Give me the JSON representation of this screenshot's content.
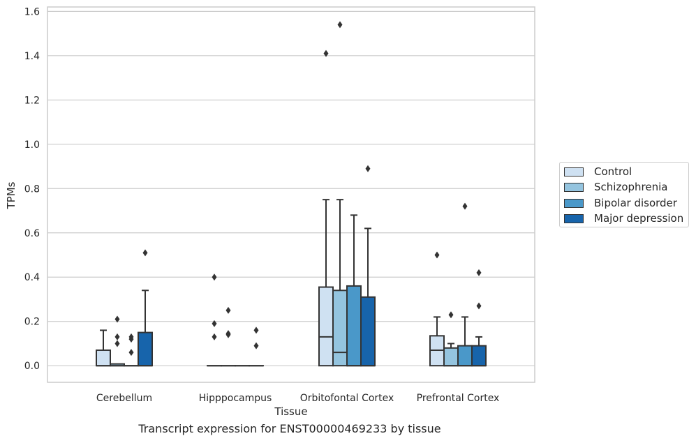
{
  "caption": "Transcript expression for ENST00000469233 by tissue",
  "chart_data": {
    "type": "box",
    "xlabel": "Tissue",
    "ylabel": "TPMs",
    "ylim": [
      -0.075,
      1.62
    ],
    "yticks": [
      "0.0",
      "0.2",
      "0.4",
      "0.6",
      "0.8",
      "1.0",
      "1.2",
      "1.4",
      "1.6"
    ],
    "categories": [
      "Cerebellum",
      "Hipppocampus",
      "Orbitofontal Cortex",
      "Prefrontal Cortex"
    ],
    "grid": "horizontal",
    "legend_placement": "right",
    "series": [
      {
        "name": "Control",
        "color": "#cfe1f2",
        "boxes": [
          {
            "q1": 0.0,
            "median": 0.0,
            "q3": 0.07,
            "whisker_low": 0.0,
            "whisker_high": 0.16,
            "outliers": []
          },
          {
            "q1": 0.0,
            "median": 0.0,
            "q3": 0.0,
            "whisker_low": 0.0,
            "whisker_high": 0.0,
            "outliers": [
              0.4,
              0.19,
              0.13
            ]
          },
          {
            "q1": 0.0,
            "median": 0.13,
            "q3": 0.355,
            "whisker_low": 0.0,
            "whisker_high": 0.75,
            "outliers": [
              1.41
            ]
          },
          {
            "q1": 0.0,
            "median": 0.07,
            "q3": 0.135,
            "whisker_low": 0.0,
            "whisker_high": 0.22,
            "outliers": [
              0.5
            ]
          }
        ]
      },
      {
        "name": "Schizophrenia",
        "color": "#94c4df",
        "boxes": [
          {
            "q1": 0.0,
            "median": 0.0,
            "q3": 0.008,
            "whisker_low": 0.0,
            "whisker_high": 0.008,
            "outliers": [
              0.21,
              0.13,
              0.1
            ]
          },
          {
            "q1": 0.0,
            "median": 0.0,
            "q3": 0.0,
            "whisker_low": 0.0,
            "whisker_high": 0.0,
            "outliers": [
              0.25,
              0.145,
              0.14
            ]
          },
          {
            "q1": 0.0,
            "median": 0.06,
            "q3": 0.34,
            "whisker_low": 0.0,
            "whisker_high": 0.75,
            "outliers": [
              1.54
            ]
          },
          {
            "q1": 0.0,
            "median": 0.0,
            "q3": 0.08,
            "whisker_low": 0.0,
            "whisker_high": 0.1,
            "outliers": [
              0.23
            ]
          }
        ]
      },
      {
        "name": "Bipolar disorder",
        "color": "#4a98c9",
        "boxes": [
          {
            "q1": 0.0,
            "median": 0.0,
            "q3": 0.0,
            "whisker_low": 0.0,
            "whisker_high": 0.0,
            "outliers": [
              0.13,
              0.12,
              0.06
            ]
          },
          {
            "q1": 0.0,
            "median": 0.0,
            "q3": 0.0,
            "whisker_low": 0.0,
            "whisker_high": 0.0,
            "outliers": []
          },
          {
            "q1": 0.0,
            "median": 0.0,
            "q3": 0.36,
            "whisker_low": 0.0,
            "whisker_high": 0.68,
            "outliers": []
          },
          {
            "q1": 0.0,
            "median": 0.0,
            "q3": 0.09,
            "whisker_low": 0.0,
            "whisker_high": 0.22,
            "outliers": [
              0.72
            ]
          }
        ]
      },
      {
        "name": "Major depression",
        "color": "#1764ab",
        "boxes": [
          {
            "q1": 0.0,
            "median": 0.0,
            "q3": 0.15,
            "whisker_low": 0.0,
            "whisker_high": 0.34,
            "outliers": [
              0.51
            ]
          },
          {
            "q1": 0.0,
            "median": 0.0,
            "q3": 0.0,
            "whisker_low": 0.0,
            "whisker_high": 0.0,
            "outliers": [
              0.16,
              0.09
            ]
          },
          {
            "q1": 0.0,
            "median": 0.0,
            "q3": 0.31,
            "whisker_low": 0.0,
            "whisker_high": 0.62,
            "outliers": [
              0.89
            ]
          },
          {
            "q1": 0.0,
            "median": 0.0,
            "q3": 0.09,
            "whisker_low": 0.0,
            "whisker_high": 0.13,
            "outliers": [
              0.42,
              0.27
            ]
          }
        ]
      }
    ]
  }
}
